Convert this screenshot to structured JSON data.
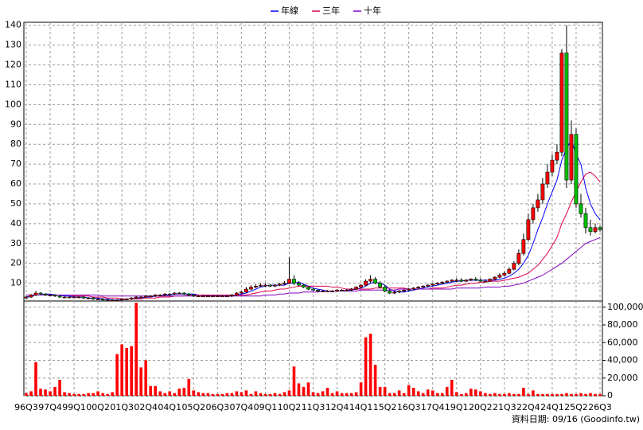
{
  "chart_data": {
    "type": "candlestick",
    "legend": "top",
    "grid": true,
    "up_color": "#ff0000",
    "down_color": "#00c000",
    "categories": [
      "96Q3",
      null,
      null,
      null,
      null,
      "97Q4",
      null,
      null,
      null,
      null,
      "99Q1",
      null,
      null,
      null,
      null,
      "00Q2",
      null,
      null,
      null,
      null,
      "01Q3",
      null,
      null,
      null,
      null,
      "02Q4",
      null,
      null,
      null,
      null,
      "04Q1",
      null,
      null,
      null,
      null,
      "05Q2",
      null,
      null,
      null,
      null,
      "06Q3",
      null,
      null,
      null,
      null,
      "07Q4",
      null,
      null,
      null,
      null,
      "09Q1",
      null,
      null,
      null,
      null,
      "10Q2",
      null,
      null,
      null,
      null,
      "11Q3",
      null,
      null,
      null,
      null,
      "12Q4",
      null,
      null,
      null,
      null,
      "14Q1",
      null,
      null,
      null,
      null,
      "15Q2",
      null,
      null,
      null,
      null,
      "16Q3",
      null,
      null,
      null,
      null,
      "17Q4",
      null,
      null,
      null,
      null,
      "19Q1",
      null,
      null,
      null,
      null,
      "20Q2",
      null,
      null,
      null,
      null,
      "21Q3",
      null,
      null,
      null,
      null,
      "22Q4",
      null,
      null,
      null,
      null,
      "24Q1",
      null,
      null,
      null,
      null,
      "25Q2",
      null,
      null,
      null,
      null,
      "26Q3"
    ],
    "open": [
      2.5,
      3,
      4,
      5,
      4.5,
      4,
      4,
      3.5,
      3,
      3,
      3,
      3,
      3,
      2.5,
      2.5,
      2,
      2,
      1.5,
      1.5,
      1.5,
      1.5,
      2,
      2,
      2.5,
      3,
      3,
      3.5,
      3.5,
      4,
      4,
      4.5,
      4.5,
      5,
      5,
      4.5,
      4,
      3.5,
      3.5,
      3.5,
      3.5,
      3.5,
      3.5,
      3.5,
      3.5,
      4,
      5,
      5.5,
      7,
      8,
      8.5,
      9,
      9,
      8.5,
      9,
      9.5,
      10,
      12,
      10,
      9,
      8,
      7,
      6.5,
      6,
      6,
      6,
      6,
      6.5,
      6.5,
      6.5,
      7,
      8,
      9,
      11,
      12,
      10,
      8,
      6,
      5,
      5.5,
      6,
      6.5,
      7,
      7.5,
      8,
      8.5,
      9,
      9.5,
      10,
      10.5,
      11,
      11.5,
      11.5,
      11,
      11.5,
      12,
      11.5,
      11,
      11,
      12,
      13,
      14,
      15,
      17,
      20,
      25,
      32,
      42,
      48,
      52,
      60,
      66,
      72,
      76,
      126,
      62,
      85,
      50,
      45,
      38,
      36,
      38
    ],
    "high": [
      3.5,
      4.5,
      6,
      5.5,
      5,
      4.5,
      4.5,
      4,
      3.5,
      3.5,
      3.5,
      3.5,
      3.5,
      3,
      3,
      2.5,
      2.5,
      2,
      2,
      2,
      2.5,
      2.5,
      3,
      3.5,
      3.5,
      4,
      4,
      4.5,
      4.5,
      5,
      5,
      5.5,
      5.5,
      5.5,
      5,
      4.5,
      4,
      4,
      4,
      4,
      4,
      4,
      4,
      4.5,
      5.5,
      6,
      8,
      9,
      9.5,
      10,
      10,
      9.5,
      9.5,
      10,
      11,
      23,
      14,
      11,
      9.5,
      8.5,
      7.5,
      7,
      6.5,
      6.5,
      6.5,
      7,
      7,
      7,
      7.5,
      8.5,
      9.5,
      12,
      14,
      13,
      11,
      9,
      6.5,
      6,
      6.5,
      7,
      7.5,
      8,
      8.5,
      9,
      9.5,
      10,
      10.5,
      11,
      11.5,
      12,
      12.5,
      12.5,
      12,
      12.5,
      13,
      12.5,
      12,
      12.5,
      13.5,
      15,
      16,
      18,
      21,
      27,
      35,
      45,
      50,
      55,
      63,
      70,
      75,
      80,
      128,
      140,
      92,
      88,
      55,
      48,
      42,
      40,
      39
    ],
    "low": [
      2,
      2.5,
      3.5,
      4,
      3.5,
      3.5,
      3,
      2.5,
      2.5,
      2.5,
      2.5,
      2.5,
      2,
      2,
      1.5,
      1.5,
      1,
      1,
      1,
      1,
      1,
      1.5,
      1.5,
      2,
      2.5,
      2.5,
      3,
      3,
      3.5,
      3.5,
      4,
      4,
      4.5,
      4,
      3.5,
      3,
      3,
      3,
      3,
      3,
      3,
      3,
      3,
      3,
      3.5,
      4.5,
      5,
      6.5,
      7.5,
      8,
      8,
      8,
      8,
      8.5,
      9,
      9.5,
      9,
      8.5,
      7.5,
      6.5,
      6,
      5.5,
      5.5,
      5.5,
      5.5,
      5.5,
      6,
      6,
      6,
      6.5,
      7.5,
      8.5,
      10,
      9.5,
      7.5,
      5.5,
      4.5,
      4.5,
      5,
      5.5,
      6,
      6.5,
      7,
      7.5,
      8,
      8.5,
      9,
      9.5,
      10,
      10.5,
      10.5,
      10.5,
      10.5,
      11,
      11,
      10.5,
      10.5,
      10.5,
      11.5,
      12.5,
      13.5,
      14.5,
      16.5,
      19,
      24,
      31,
      40,
      46,
      50,
      58,
      64,
      70,
      74,
      58,
      60,
      48,
      43,
      35,
      34,
      35,
      36
    ],
    "close": [
      3,
      4,
      5,
      4.5,
      4,
      4,
      3.5,
      3,
      3,
      3,
      3,
      3,
      2.5,
      2.5,
      2,
      2,
      1.5,
      1.5,
      1.5,
      1.5,
      2,
      2,
      2.5,
      3,
      3,
      3.5,
      3.5,
      4,
      4,
      4.5,
      4.5,
      5,
      5,
      4.5,
      4,
      3.5,
      3.5,
      3.5,
      3.5,
      3.5,
      3.5,
      3.5,
      3.5,
      4,
      5,
      5.5,
      7,
      8,
      8.5,
      9,
      9,
      8.5,
      9,
      9.5,
      10,
      12,
      10,
      9,
      8,
      7,
      6.5,
      6,
      6,
      6,
      6,
      6.5,
      6.5,
      6.5,
      7,
      8,
      9,
      11,
      12,
      10,
      8,
      6,
      5,
      5.5,
      6,
      6.5,
      7,
      7.5,
      8,
      8.5,
      9,
      9.5,
      10,
      10.5,
      11,
      11.5,
      11.5,
      11,
      11.5,
      12,
      11.5,
      11,
      11,
      12,
      13,
      14,
      15,
      17,
      20,
      25,
      32,
      42,
      48,
      52,
      60,
      66,
      72,
      76,
      126,
      62,
      85,
      50,
      45,
      38,
      36,
      38,
      37
    ],
    "ylim": [
      1,
      141.5
    ],
    "yticks": [
      10,
      20,
      30,
      40,
      50,
      60,
      70,
      80,
      90,
      100,
      110,
      120,
      130,
      140
    ],
    "series": [
      {
        "name": "年線",
        "color": "#0000ff",
        "values": [
          3,
          3.5,
          4,
          4,
          4.5,
          4.5,
          4,
          4,
          3.5,
          3.5,
          3,
          3,
          3,
          2.5,
          2.5,
          2.5,
          2,
          2,
          1.5,
          1.5,
          1.5,
          2,
          2,
          2.5,
          2.5,
          3,
          3,
          3.5,
          3.5,
          4,
          4,
          4.5,
          4.5,
          4.5,
          4.5,
          4.5,
          4,
          4,
          3.5,
          3.5,
          3.5,
          3.5,
          3.5,
          3.5,
          4,
          4.5,
          5,
          6,
          7,
          8,
          8.5,
          9,
          9,
          9,
          9,
          10,
          10,
          10.5,
          9.5,
          8.5,
          7.5,
          7,
          6.5,
          6,
          6,
          6,
          6,
          6.5,
          6.5,
          7,
          7.5,
          8.5,
          10,
          10.5,
          10,
          9,
          7,
          6,
          5.5,
          5.5,
          6,
          6.5,
          7,
          7.5,
          8,
          8.5,
          9,
          9.5,
          10,
          10.5,
          11,
          11,
          11.5,
          11.5,
          11.5,
          11.5,
          11.5,
          11.5,
          11.5,
          12,
          12.5,
          13.5,
          15,
          17,
          20,
          24,
          30,
          37,
          43,
          50,
          56,
          62,
          72,
          78,
          82,
          75,
          70,
          58,
          50,
          45,
          42
        ]
      },
      {
        "name": "三年",
        "color": "#e0004a",
        "values": [
          4,
          4,
          4,
          4,
          4,
          4,
          4,
          4,
          4,
          4,
          3.5,
          3.5,
          3.5,
          3.5,
          3,
          3,
          3,
          2.5,
          2.5,
          2.5,
          2,
          2,
          2,
          2,
          2,
          2.5,
          2.5,
          2.5,
          3,
          3,
          3,
          3.5,
          3.5,
          3.5,
          4,
          4,
          4,
          4,
          4,
          4,
          4,
          4,
          4,
          4,
          4,
          4,
          4,
          4.5,
          5,
          5.5,
          6,
          6,
          6.5,
          7,
          7,
          7.5,
          8,
          8.5,
          8.5,
          8.5,
          8.5,
          8.5,
          8.5,
          8.5,
          8,
          8,
          7.5,
          7,
          7,
          7,
          7,
          7,
          7,
          7.5,
          7.5,
          7.5,
          7.5,
          7.5,
          7.5,
          7.5,
          7,
          7,
          7,
          7,
          7,
          7.5,
          7.5,
          7.5,
          8,
          8.5,
          9,
          9,
          9.5,
          10,
          10,
          10.5,
          10.5,
          11,
          11,
          11,
          11.5,
          12,
          12.5,
          13,
          14,
          15,
          17,
          19,
          22,
          25,
          29,
          33,
          40,
          45,
          51,
          56,
          61,
          65,
          66,
          64,
          61
        ]
      },
      {
        "name": "十年",
        "color": "#8000c0",
        "values": [
          4,
          4,
          4,
          4,
          4,
          4,
          4,
          4,
          4,
          4,
          4,
          4,
          4,
          4,
          4,
          4,
          3.5,
          3.5,
          3.5,
          3.5,
          3.5,
          3.5,
          3.5,
          3.5,
          3.5,
          3.5,
          3.5,
          3.5,
          3.5,
          3.5,
          3.5,
          3.5,
          3.5,
          3.5,
          3.5,
          3.5,
          3.5,
          3.5,
          3.5,
          3.5,
          3.5,
          3.5,
          3.5,
          3.5,
          3.5,
          3.5,
          3.5,
          3.5,
          3.5,
          3.5,
          4,
          4,
          4,
          4.5,
          4.5,
          5,
          5,
          5,
          5.5,
          5.5,
          5.5,
          5.5,
          6,
          6,
          6,
          6,
          6,
          6,
          6,
          6,
          6.5,
          6.5,
          6.5,
          6.5,
          6.5,
          6.5,
          6.5,
          6.5,
          7,
          7,
          7,
          7,
          7,
          7,
          7,
          7,
          7,
          7,
          7,
          7,
          7.5,
          7.5,
          7.5,
          7.5,
          7.5,
          7.5,
          8,
          8,
          8,
          8,
          8.5,
          8.5,
          9,
          9.5,
          10,
          11,
          12,
          13,
          14,
          15.5,
          17,
          18.5,
          20,
          22,
          24,
          26,
          28,
          30,
          31,
          32,
          33
        ]
      }
    ],
    "volume": {
      "type": "bar",
      "color": "#ff0000",
      "values": [
        3000,
        5000,
        38000,
        8000,
        7000,
        5000,
        10000,
        18000,
        4000,
        3000,
        2000,
        2000,
        2000,
        3000,
        3000,
        5000,
        3000,
        2000,
        4000,
        47000,
        58000,
        54000,
        56000,
        105000,
        32000,
        40000,
        11000,
        11000,
        5000,
        3000,
        5000,
        3000,
        8000,
        9000,
        19000,
        6000,
        4000,
        3000,
        3000,
        2000,
        2000,
        2000,
        3000,
        3000,
        5000,
        4000,
        6000,
        2000,
        5000,
        3000,
        2000,
        2000,
        3000,
        2000,
        4000,
        6000,
        33000,
        14000,
        10000,
        15000,
        4000,
        3000,
        5000,
        9000,
        3000,
        5000,
        3000,
        3000,
        3000,
        4000,
        15000,
        66000,
        70000,
        35000,
        10000,
        10000,
        3000,
        3000,
        6000,
        3000,
        12000,
        9000,
        5000,
        3000,
        7000,
        6000,
        3000,
        3000,
        10000,
        18000,
        4000,
        2000,
        3000,
        8000,
        7000,
        5000,
        3000,
        2000,
        3000,
        2000,
        2000,
        3000,
        2000,
        2000,
        9000,
        2000,
        6000,
        2000,
        2000,
        2000,
        2000,
        2000,
        2000,
        3000,
        2000,
        2000,
        3000,
        2000,
        3000,
        2000,
        2000
      ],
      "ylim": [
        0,
        107000
      ],
      "yticks": [
        0,
        {
          "value": 20000,
          "label": "20,000"
        },
        {
          "value": 40000,
          "label": "40,000"
        },
        {
          "value": 60000,
          "label": "60,000"
        },
        {
          "value": 80000,
          "label": "80,000"
        },
        {
          "value": 100000,
          "label": "100,000"
        }
      ]
    },
    "footnote": "資料日期: 09/16 (Goodinfo.tw)"
  }
}
